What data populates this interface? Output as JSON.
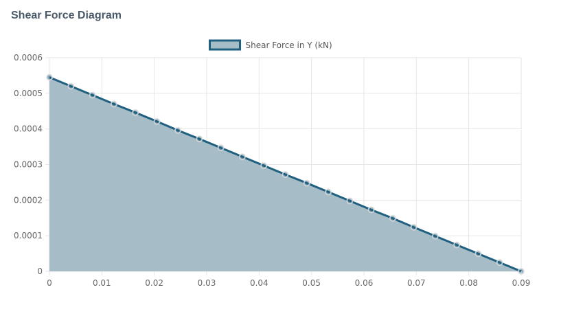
{
  "page_title": "Shear Force Diagram",
  "chart_data": {
    "type": "area",
    "title": "",
    "xlabel": "",
    "ylabel": "",
    "series": [
      {
        "name": "Shear Force in Y (kN)",
        "x": [
          0,
          0.0041,
          0.0082,
          0.0123,
          0.0164,
          0.0205,
          0.0245,
          0.0286,
          0.0327,
          0.0368,
          0.0409,
          0.045,
          0.0491,
          0.0532,
          0.0573,
          0.0614,
          0.0655,
          0.0695,
          0.0736,
          0.0777,
          0.0818,
          0.0859,
          0.09
        ],
        "y": [
          0.000545,
          0.00052,
          0.000495,
          0.00047,
          0.000446,
          0.000421,
          0.000396,
          0.000372,
          0.000347,
          0.000322,
          0.000297,
          0.000272,
          0.000248,
          0.000223,
          0.000198,
          0.000173,
          0.000149,
          0.000124,
          9.91e-05,
          7.43e-05,
          4.96e-05,
          2.48e-05,
          0
        ]
      }
    ],
    "xlim": [
      0,
      0.09
    ],
    "ylim": [
      0,
      0.0006
    ],
    "xticks": [
      "0",
      "0.01",
      "0.02",
      "0.03",
      "0.04",
      "0.05",
      "0.06",
      "0.07",
      "0.08",
      "0.09"
    ],
    "yticks": [
      "0",
      "0.0001",
      "0.0002",
      "0.0003",
      "0.0004",
      "0.0005",
      "0.0006"
    ],
    "grid": true,
    "legend": "top-center",
    "colors": {
      "line": "#1f5f7f",
      "fill": "#a6bcc7",
      "point": "#1f5f7f",
      "grid": "#e6e6e6"
    }
  }
}
